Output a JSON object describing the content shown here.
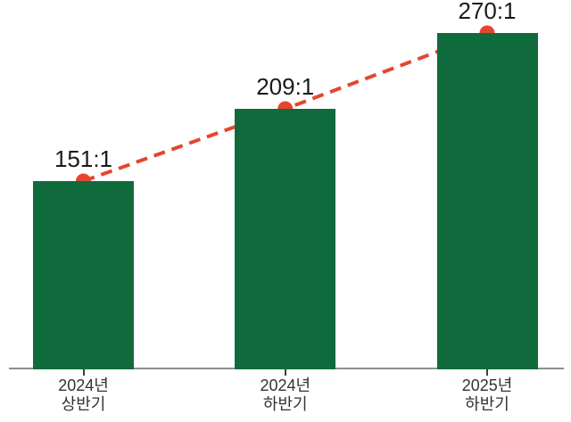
{
  "chart_data": {
    "type": "bar",
    "title": "",
    "xlabel": "",
    "ylabel": "",
    "categories": [
      "2024년\n상반기",
      "2024년\n하반기",
      "2025년\n하반기"
    ],
    "values": [
      151,
      209,
      270
    ],
    "value_labels": [
      "151:1",
      "209:1",
      "270:1"
    ],
    "series": [
      {
        "name": "bars",
        "type": "bar",
        "values": [
          151,
          209,
          270
        ]
      },
      {
        "name": "trend-line",
        "type": "line",
        "style": "dashed",
        "values": [
          151,
          209,
          270
        ]
      }
    ],
    "ylim": [
      0,
      290
    ],
    "grid": false,
    "legend": "none",
    "axis_visible": "x-only",
    "colors": {
      "bar": "#106b3c",
      "line": "#e6452f",
      "dot": "#e6452f",
      "value_label_text": "#1b1b1b",
      "category_label_text": "#333333",
      "axis": "#8f8f8f",
      "tick": "#3f3f3f",
      "background": "#ffffff"
    }
  }
}
